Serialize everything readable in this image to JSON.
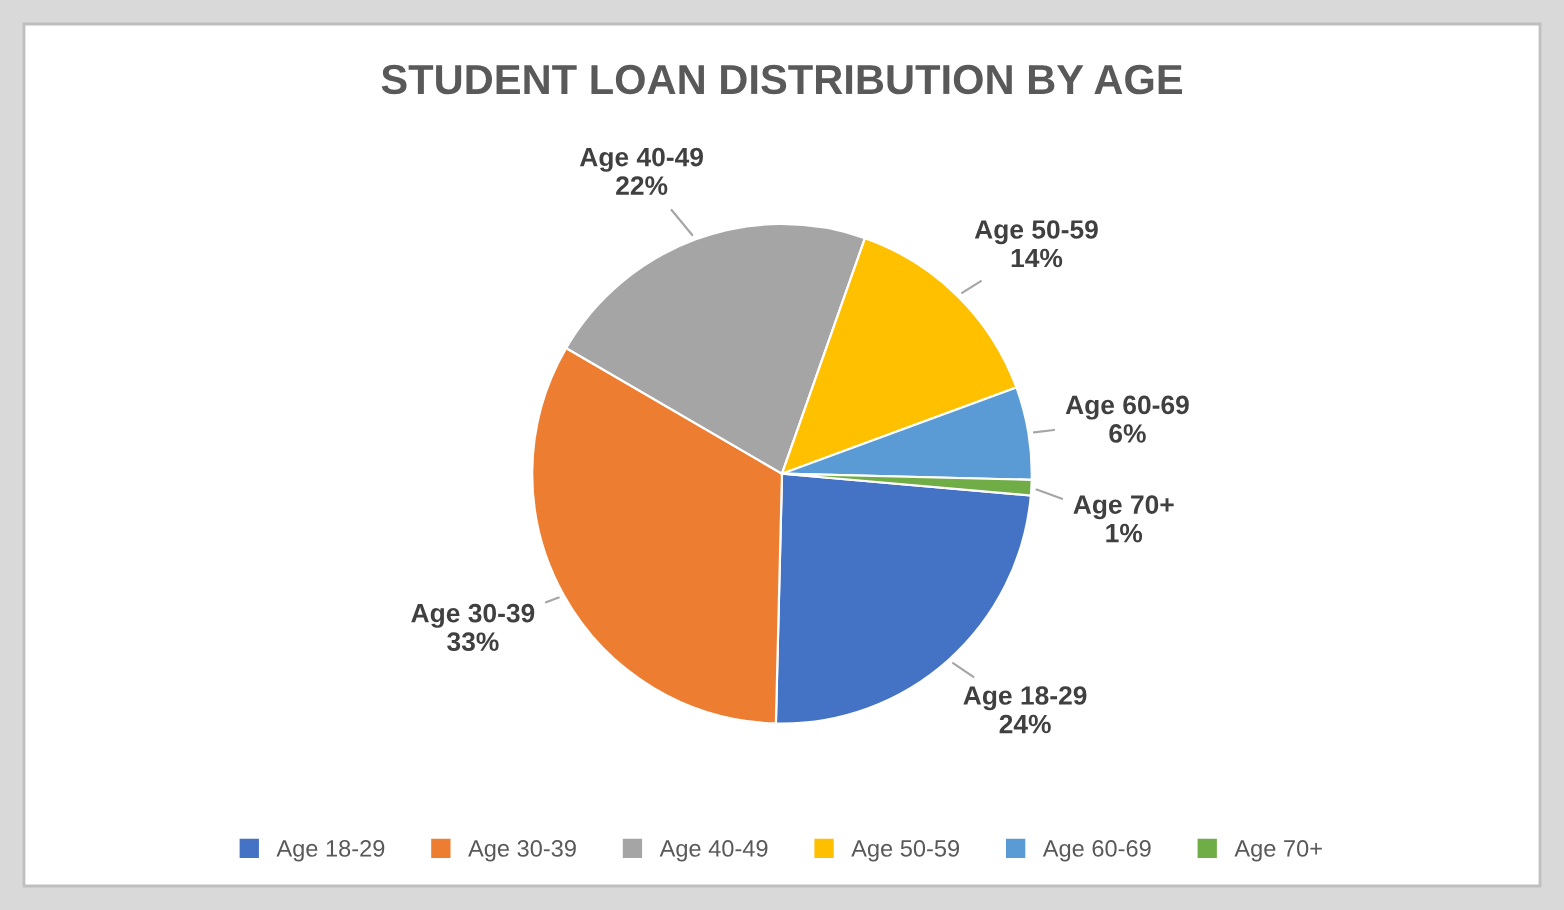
{
  "chart_data": {
    "type": "pie",
    "title": "STUDENT LOAN DISTRIBUTION BY AGE",
    "categories": [
      "Age 18-29",
      "Age 30-39",
      "Age 40-49",
      "Age 50-59",
      "Age 60-69",
      "Age 70+"
    ],
    "values": [
      24,
      33,
      22,
      14,
      6,
      1
    ],
    "value_labels": [
      "24%",
      "33%",
      "22%",
      "14%",
      "6%",
      "1%"
    ],
    "colors": [
      "#4472c4",
      "#ed7d31",
      "#a5a5a5",
      "#ffc000",
      "#5b9bd5",
      "#70ad47"
    ],
    "legend": "bottom"
  }
}
